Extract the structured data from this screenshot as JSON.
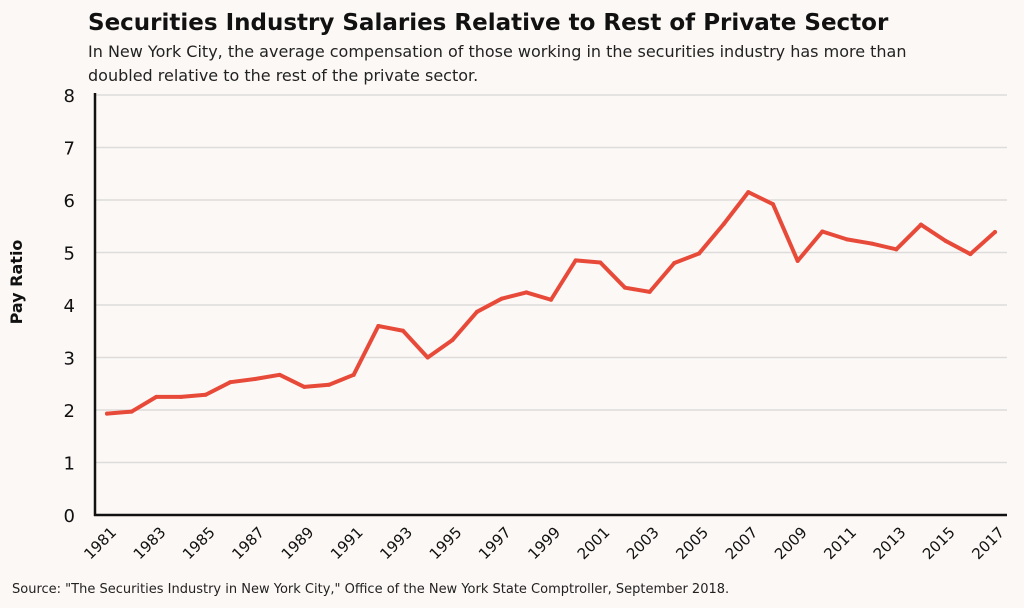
{
  "chart_data": {
    "type": "line",
    "title": "Securities Industry Salaries Relative to Rest of Private Sector",
    "subtitle": "In New York City, the average compensation of those working in the securities industry has more than doubled relative to the rest of the private sector.",
    "xlabel": "",
    "ylabel": "Pay Ratio",
    "ylim": [
      0,
      8
    ],
    "yticks": [
      0,
      1,
      2,
      3,
      4,
      5,
      6,
      7,
      8
    ],
    "xticks": [
      "1981",
      "1983",
      "1985",
      "1987",
      "1989",
      "1991",
      "1993",
      "1995",
      "1997",
      "1999",
      "2001",
      "2003",
      "2005",
      "2007",
      "2009",
      "2011",
      "2013",
      "2015",
      "2017"
    ],
    "grid": "horizontal",
    "color": "#e84a3a",
    "x": [
      1981,
      1982,
      1983,
      1984,
      1985,
      1986,
      1987,
      1988,
      1989,
      1990,
      1991,
      1992,
      1993,
      1994,
      1995,
      1996,
      1997,
      1998,
      1999,
      2000,
      2001,
      2002,
      2003,
      2004,
      2005,
      2006,
      2007,
      2008,
      2009,
      2010,
      2011,
      2012,
      2013,
      2014,
      2015,
      2016,
      2017
    ],
    "values": [
      1.93,
      1.97,
      2.25,
      2.25,
      2.29,
      2.53,
      2.59,
      2.67,
      2.44,
      2.48,
      2.67,
      3.6,
      3.51,
      3.0,
      3.33,
      3.87,
      4.12,
      4.24,
      4.1,
      4.85,
      4.81,
      4.33,
      4.25,
      4.8,
      4.98,
      5.54,
      6.15,
      5.92,
      4.84,
      5.4,
      5.25,
      5.17,
      5.06,
      5.53,
      5.22,
      4.97,
      5.39
    ],
    "source": "Source: \"The Securities Industry in New York City,\" Office of the New York State Comptroller, September 2018."
  }
}
